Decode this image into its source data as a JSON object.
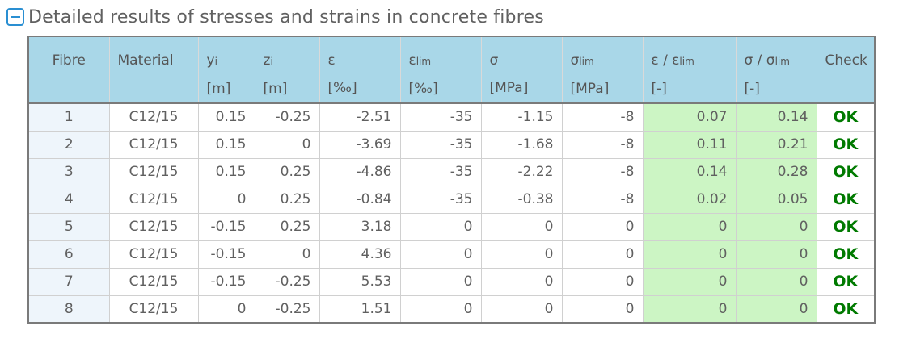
{
  "section": {
    "title": "Detailed results of stresses and strains in concrete fibres",
    "toggle_icon": "collapse-minus-icon"
  },
  "table": {
    "headers": [
      {
        "main": "Fibre"
      },
      {
        "main": "Material"
      },
      {
        "main": "y",
        "sub": "i",
        "unit": "[m]"
      },
      {
        "main": "z",
        "sub": "i",
        "unit": "[m]"
      },
      {
        "main": "ε",
        "unit": "[‰]"
      },
      {
        "main": "ε",
        "sub": "lim",
        "unit": "[‰]"
      },
      {
        "main": "σ",
        "unit": "[MPa]"
      },
      {
        "main": "σ",
        "sub": "lim",
        "unit": "[MPa]"
      },
      {
        "main": "ε / ε",
        "sub": "lim",
        "unit": "[-]"
      },
      {
        "main": "σ / σ",
        "sub": "lim",
        "unit": "[-]"
      },
      {
        "main": "Check"
      }
    ],
    "rows": [
      [
        "1",
        "C12/15",
        "0.15",
        "-0.25",
        "-2.51",
        "-35",
        "-1.15",
        "-8",
        "0.07",
        "0.14",
        "OK"
      ],
      [
        "2",
        "C12/15",
        "0.15",
        "0",
        "-3.69",
        "-35",
        "-1.68",
        "-8",
        "0.11",
        "0.21",
        "OK"
      ],
      [
        "3",
        "C12/15",
        "0.15",
        "0.25",
        "-4.86",
        "-35",
        "-2.22",
        "-8",
        "0.14",
        "0.28",
        "OK"
      ],
      [
        "4",
        "C12/15",
        "0",
        "0.25",
        "-0.84",
        "-35",
        "-0.38",
        "-8",
        "0.02",
        "0.05",
        "OK"
      ],
      [
        "5",
        "C12/15",
        "-0.15",
        "0.25",
        "3.18",
        "0",
        "0",
        "0",
        "0",
        "0",
        "OK"
      ],
      [
        "6",
        "C12/15",
        "-0.15",
        "0",
        "4.36",
        "0",
        "0",
        "0",
        "0",
        "0",
        "OK"
      ],
      [
        "7",
        "C12/15",
        "-0.15",
        "-0.25",
        "5.53",
        "0",
        "0",
        "0",
        "0",
        "0",
        "OK"
      ],
      [
        "8",
        "C12/15",
        "0",
        "-0.25",
        "1.51",
        "0",
        "0",
        "0",
        "0",
        "0",
        "OK"
      ]
    ]
  },
  "colors": {
    "header_bg": "#a9d7e8",
    "ratio_bg": "#ccf5c4",
    "fibre_bg": "#eef5fb",
    "ok_text": "#007a00",
    "toggle_border": "#2a8fd2"
  }
}
